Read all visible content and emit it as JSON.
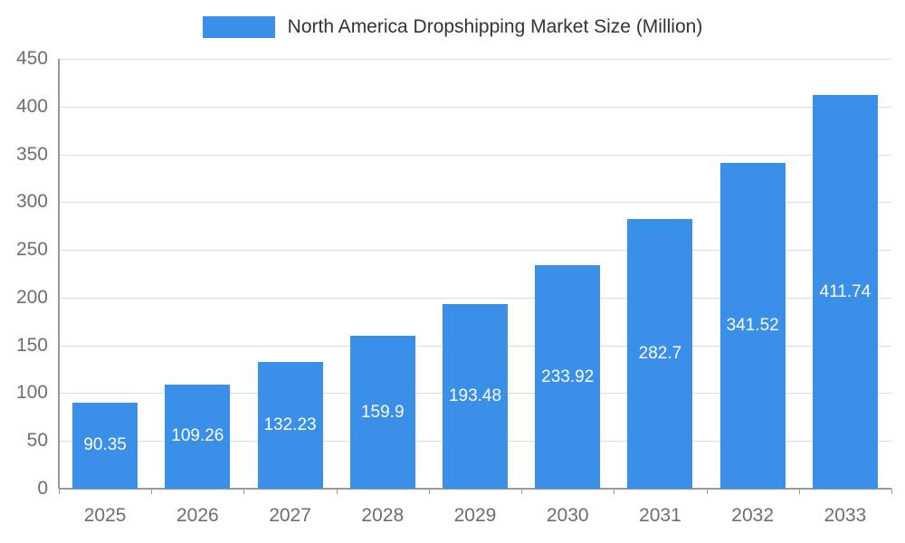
{
  "chart_data": {
    "type": "bar",
    "title": "North America Dropshipping Market Size (Million)",
    "categories": [
      "2025",
      "2026",
      "2027",
      "2028",
      "2029",
      "2030",
      "2031",
      "2032",
      "2033"
    ],
    "values": [
      90.35,
      109.26,
      132.23,
      159.9,
      193.48,
      233.92,
      282.7,
      341.52,
      411.74
    ],
    "value_labels": [
      "90.35",
      "109.26",
      "132.23",
      "159.9",
      "193.48",
      "233.92",
      "282.7",
      "341.52",
      "411.74"
    ],
    "xlabel": "",
    "ylabel": "",
    "ylim": [
      0,
      450
    ],
    "y_ticks": [
      0,
      50,
      100,
      150,
      200,
      250,
      300,
      350,
      400,
      450
    ],
    "grid": "horizontal",
    "legend_position": "top-center",
    "data_label_position": "inside-center",
    "styles": {
      "bar_color": "#3a8fe8",
      "grid_color": "#dddddd",
      "axis_color": "#999999",
      "tick_label_color": "#6e6e6e",
      "title_color": "#333333",
      "data_label_color": "#ffffff",
      "background": "#ffffff"
    }
  }
}
